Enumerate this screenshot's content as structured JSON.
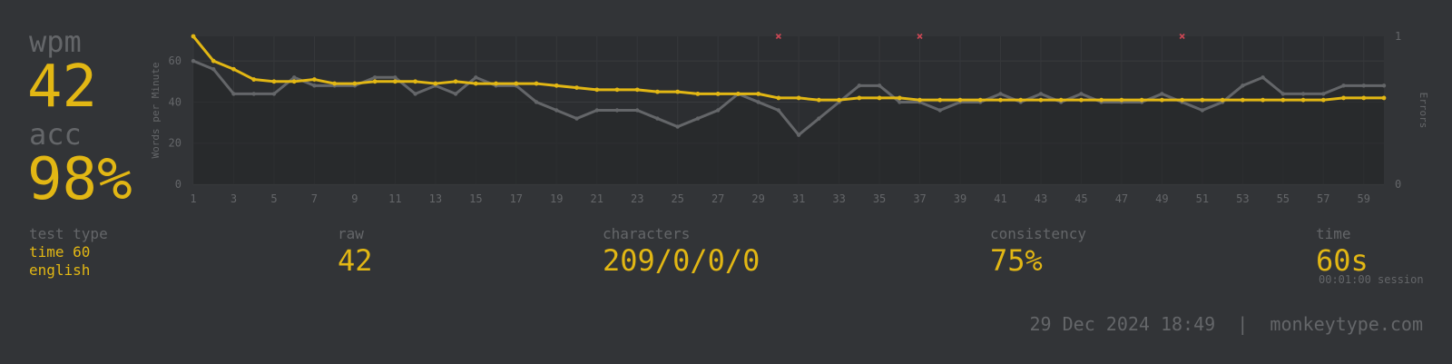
{
  "stats": {
    "wpm_label": "wpm",
    "wpm_value": "42",
    "acc_label": "acc",
    "acc_value": "98%"
  },
  "info": {
    "test_type_label": "test type",
    "test_type_line1": "time 60",
    "test_type_line2": "english",
    "raw_label": "raw",
    "raw_value": "42",
    "characters_label": "characters",
    "characters_value": "209/0/0/0",
    "consistency_label": "consistency",
    "consistency_value": "75%",
    "time_label": "time",
    "time_value": "60s",
    "session": "00:01:00 session"
  },
  "footer": {
    "date": "29 Dec 2024 18:49",
    "separator": "|",
    "site": "monkeytype.com"
  },
  "colors": {
    "background": "#323437",
    "accent": "#e2b714",
    "sub": "#646669",
    "raw_line": "#646669",
    "error": "#ca4754"
  },
  "chart_data": {
    "type": "line",
    "x": [
      1,
      2,
      3,
      4,
      5,
      6,
      7,
      8,
      9,
      10,
      11,
      12,
      13,
      14,
      15,
      16,
      17,
      18,
      19,
      20,
      21,
      22,
      23,
      24,
      25,
      26,
      27,
      28,
      29,
      30,
      31,
      32,
      33,
      34,
      35,
      36,
      37,
      38,
      39,
      40,
      41,
      42,
      43,
      44,
      45,
      46,
      47,
      48,
      49,
      50,
      51,
      52,
      53,
      54,
      55,
      56,
      57,
      58,
      59,
      60
    ],
    "x_ticks": [
      "1",
      "3",
      "5",
      "7",
      "9",
      "11",
      "13",
      "15",
      "17",
      "19",
      "21",
      "23",
      "25",
      "27",
      "29",
      "31",
      "33",
      "35",
      "37",
      "39",
      "41",
      "43",
      "45",
      "47",
      "49",
      "51",
      "53",
      "55",
      "57",
      "59"
    ],
    "ylabel": "Words per Minute",
    "ylim": [
      0,
      72
    ],
    "y_ticks": [
      "0",
      "20",
      "40",
      "60"
    ],
    "y2label": "Errors",
    "y2lim": [
      0,
      1
    ],
    "y2_ticks": [
      "0",
      "1"
    ],
    "series": [
      {
        "values": [
          72,
          60,
          56,
          51,
          50,
          50,
          51,
          49,
          49,
          50,
          50,
          50,
          49,
          50,
          49,
          49,
          49,
          49,
          48,
          47,
          46,
          46,
          46,
          45,
          45,
          44,
          44,
          44,
          44,
          42,
          42,
          41,
          41,
          42,
          42,
          42,
          41,
          41,
          41,
          41,
          41,
          41,
          41,
          41,
          41,
          41,
          41,
          41,
          41,
          41,
          41,
          41,
          41,
          41,
          41,
          41,
          41,
          42,
          42,
          42
        ]
      },
      {
        "values": [
          60,
          56,
          44,
          44,
          44,
          52,
          48,
          48,
          48,
          52,
          52,
          44,
          48,
          44,
          52,
          48,
          48,
          40,
          36,
          32,
          36,
          36,
          36,
          32,
          28,
          32,
          36,
          44,
          40,
          36,
          24,
          32,
          40,
          48,
          48,
          40,
          40,
          36,
          40,
          40,
          44,
          40,
          44,
          40,
          44,
          40,
          40,
          40,
          44,
          40,
          36,
          40,
          48,
          52,
          44,
          44,
          44,
          48,
          48,
          48
        ]
      }
    ],
    "errors_x": [
      30,
      37,
      50
    ],
    "grid": true
  }
}
